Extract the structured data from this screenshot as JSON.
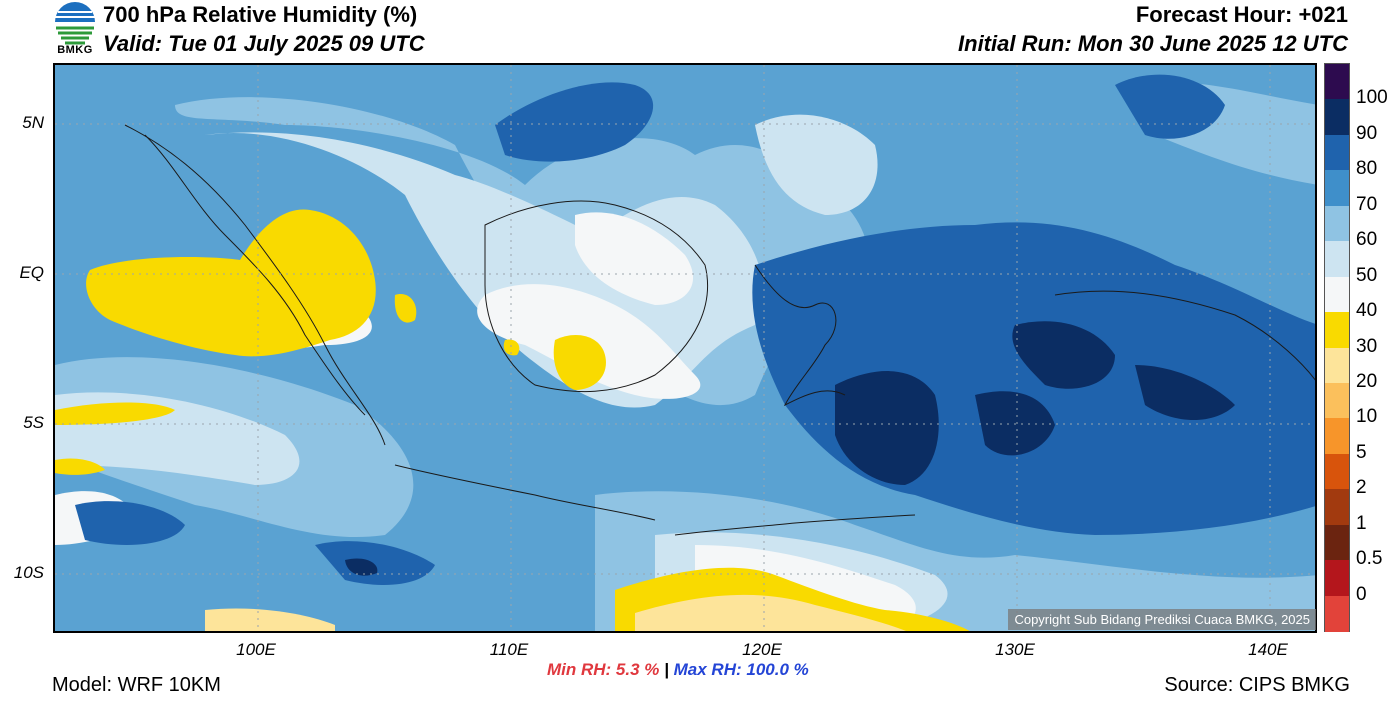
{
  "header": {
    "title": "700 hPa Relative Humidity (%)",
    "valid": "Valid: Tue 01 July 2025 09 UTC",
    "forecast_hour": "Forecast Hour: +021",
    "initial_run": "Initial Run: Mon 30 June 2025 12 UTC",
    "logo_text": "BMKG"
  },
  "map": {
    "lat_labels": [
      "5N",
      "EQ",
      "5S",
      "10S"
    ],
    "lon_labels": [
      "100E",
      "110E",
      "120E",
      "130E",
      "140E"
    ],
    "copyright": "Copyright Sub Bidang Prediksi Cuaca BMKG, 2025",
    "background_color": "#5aa2d2"
  },
  "colorbar": {
    "labels": [
      "100",
      "90",
      "80",
      "70",
      "60",
      "50",
      "40",
      "30",
      "20",
      "10",
      "5",
      "2",
      "1",
      "0.5",
      "0"
    ],
    "colors": [
      "#2d0b4f",
      "#0b2d63",
      "#1f63ad",
      "#3f8fca",
      "#8fc3e3",
      "#cde4f1",
      "#f5f7f8",
      "#f9da00",
      "#fde49a",
      "#fbc05c",
      "#f7952a",
      "#d8540c",
      "#a23a0f",
      "#6b2410",
      "#b4161c",
      "#e2433a"
    ]
  },
  "footer": {
    "min_rh_label": "Min RH:   5.3 %",
    "separator": "|",
    "max_rh_label": "Max RH: 100.0 %",
    "model": "Model: WRF 10KM",
    "source": "Source: CIPS BMKG"
  }
}
